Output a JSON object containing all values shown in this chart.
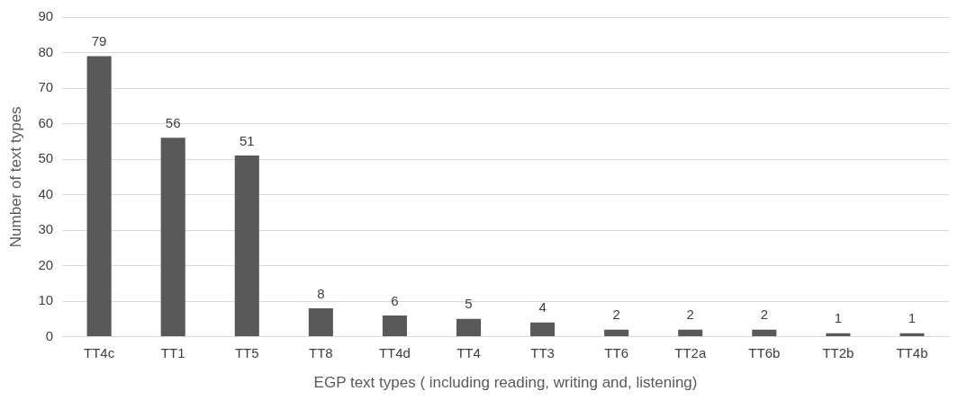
{
  "chart_data": {
    "type": "bar",
    "xlabel": "EGP text types ( including reading, writing and, listening)",
    "ylabel": "Number of text types",
    "categories": [
      "TT4c",
      "TT1",
      "TT5",
      "TT8",
      "TT4d",
      "TT4",
      "TT3",
      "TT6",
      "TT2a",
      "TT6b",
      "TT2b",
      "TT4b"
    ],
    "values": [
      79,
      56,
      51,
      8,
      6,
      5,
      4,
      2,
      2,
      2,
      1,
      1
    ],
    "color": "#595959",
    "ylim": [
      0,
      90
    ],
    "yticks": [
      0,
      10,
      20,
      30,
      40,
      50,
      60,
      70,
      80,
      90
    ],
    "grid": "y",
    "data_labels": true,
    "legend": false
  }
}
